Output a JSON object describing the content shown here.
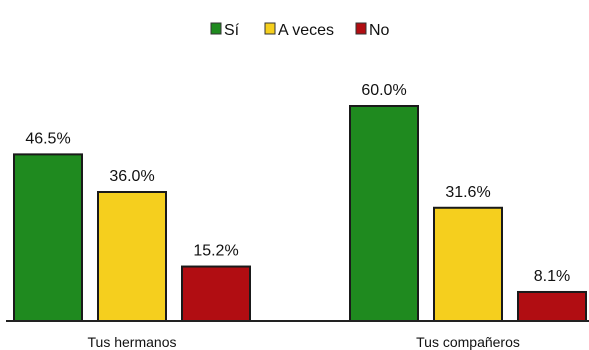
{
  "chart_data": {
    "type": "bar",
    "categories": [
      "Tus hermanos",
      "Tus compañeros"
    ],
    "series": [
      {
        "name": "Sí",
        "values": [
          46.5,
          60.0
        ],
        "color": "#1f8a1f"
      },
      {
        "name": "A veces",
        "values": [
          36.0,
          31.6
        ],
        "color": "#f5cf1e"
      },
      {
        "name": "No",
        "values": [
          15.2,
          8.1
        ],
        "color": "#b10d12"
      }
    ],
    "value_labels": [
      [
        "46.5%",
        "60.0%"
      ],
      [
        "36.0%",
        "31.6%"
      ],
      [
        "15.2%",
        "8.1%"
      ]
    ],
    "ylim": [
      0,
      60
    ],
    "legend_position": "top-center",
    "grid": false
  }
}
